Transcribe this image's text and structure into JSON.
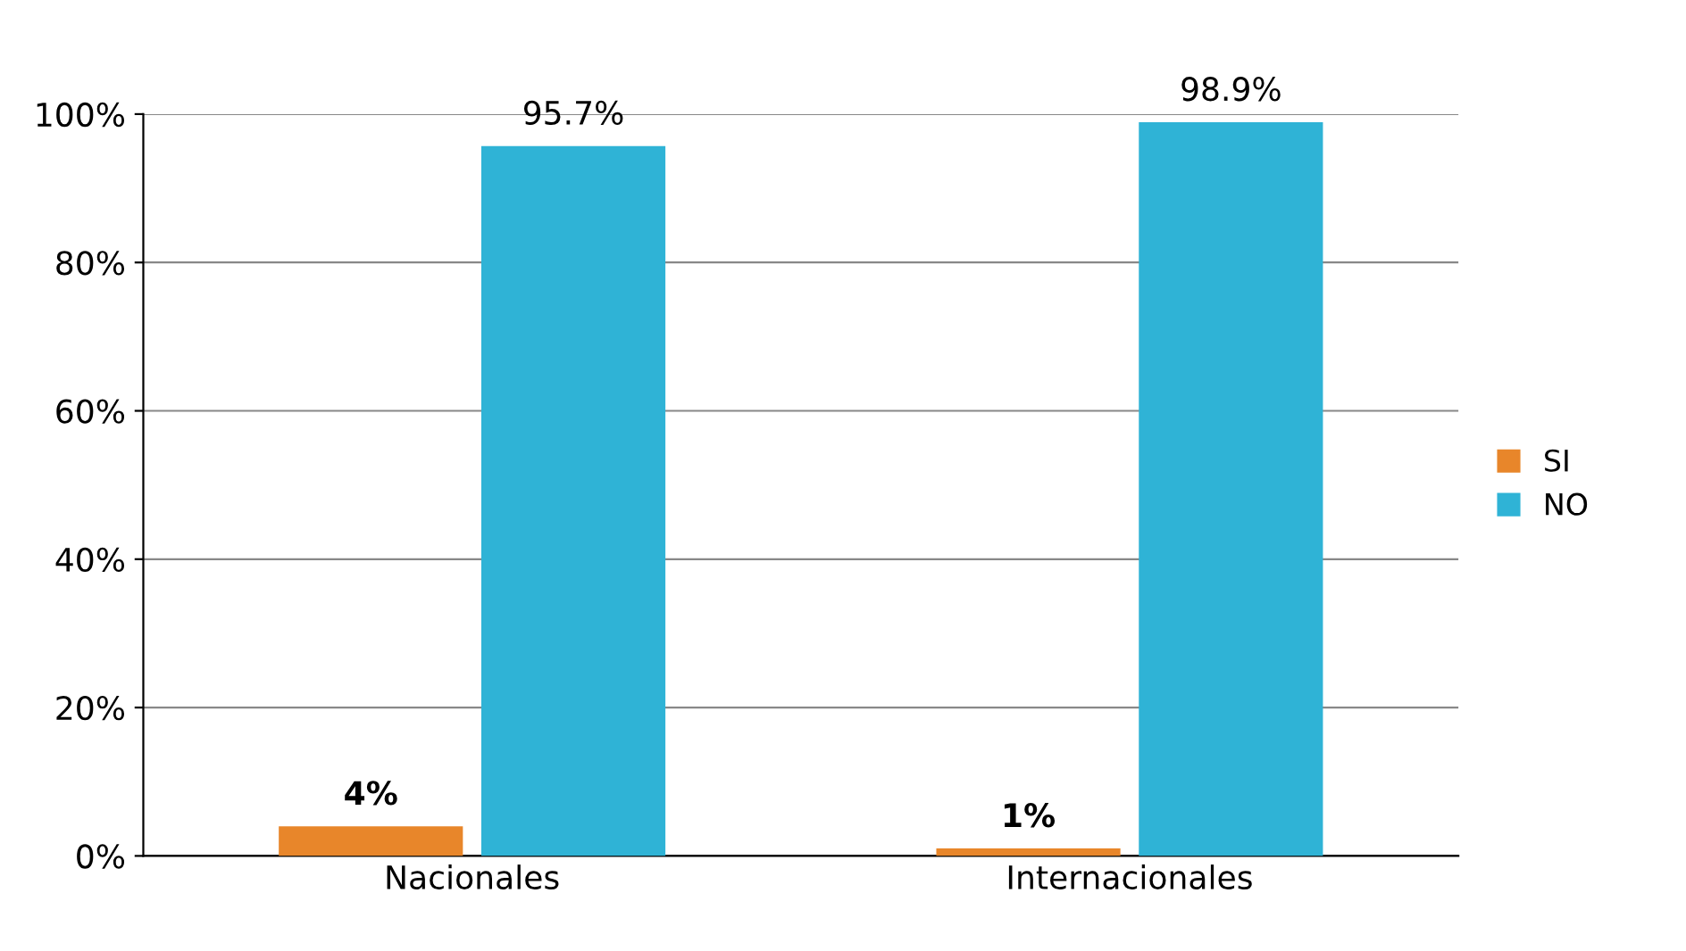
{
  "chart_data": {
    "type": "bar",
    "categories": [
      "Nacionales",
      "Internacionales"
    ],
    "series": [
      {
        "name": "SI",
        "color": "#e8862a",
        "values": [
          4,
          1
        ],
        "value_labels": [
          "4%",
          "1%"
        ]
      },
      {
        "name": "NO",
        "color": "#2fb3d6",
        "values": [
          95.7,
          98.9
        ],
        "value_labels": [
          "95.7%",
          "98.9%"
        ]
      }
    ],
    "ylim": [
      0,
      100
    ],
    "yticks": [
      {
        "value": 0,
        "label": "0%"
      },
      {
        "value": 20,
        "label": "20%"
      },
      {
        "value": 40,
        "label": "40%"
      },
      {
        "value": 60,
        "label": "60%"
      },
      {
        "value": 80,
        "label": "80%"
      },
      {
        "value": 100,
        "label": "100%"
      }
    ],
    "grid": "y",
    "legend": "right"
  }
}
